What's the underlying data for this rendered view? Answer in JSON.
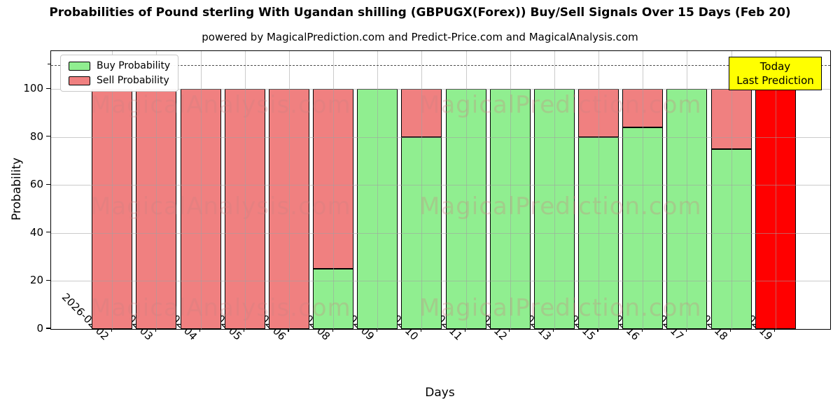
{
  "chart_data": {
    "type": "bar",
    "stacked": true,
    "title": "Probabilities of Pound sterling With Ugandan shilling (GBPUGX(Forex)) Buy/Sell Signals Over 15 Days (Feb 20)",
    "subtitle": "powered by MagicalPrediction.com and Predict-Price.com and MagicalAnalysis.com",
    "xlabel": "Days",
    "ylabel": "Probability",
    "categories": [
      "2026-02-02",
      "2026-02-03",
      "2026-02-04",
      "2026-02-05",
      "2026-02-06",
      "2026-02-08",
      "2026-02-09",
      "2026-02-10",
      "2026-02-11",
      "2026-02-12",
      "2026-02-13",
      "2026-02-15",
      "2026-02-16",
      "2026-02-17",
      "2026-02-18",
      "2026-02-19"
    ],
    "series": [
      {
        "name": "Buy Probability",
        "color": "#90ee90",
        "in_legend": true,
        "values": [
          0,
          0,
          0,
          0,
          0,
          25,
          100,
          80,
          100,
          100,
          100,
          80,
          84,
          100,
          75,
          0
        ]
      },
      {
        "name": "Sell Probability",
        "color": "#f08080",
        "in_legend": true,
        "values": [
          100,
          100,
          100,
          100,
          100,
          75,
          0,
          20,
          0,
          0,
          0,
          20,
          16,
          0,
          25,
          0
        ]
      },
      {
        "name": "Last Prediction (Today)",
        "color": "#ff0000",
        "in_legend": false,
        "values": [
          0,
          0,
          0,
          0,
          0,
          0,
          0,
          0,
          0,
          0,
          0,
          0,
          0,
          0,
          0,
          100
        ]
      }
    ],
    "yticks": [
      0,
      20,
      40,
      60,
      80,
      100
    ],
    "ylim": [
      0,
      115.8
    ],
    "dashed_line_y": 110,
    "grid": true,
    "xtick_rotation": 45,
    "legend_position": "upper left"
  },
  "legend": {
    "items": [
      {
        "label": "Buy Probability",
        "color": "#90ee90"
      },
      {
        "label": "Sell Probability",
        "color": "#f08080"
      }
    ]
  },
  "annotation": {
    "line1": "Today",
    "line2": "Last Prediction",
    "bg_color": "#ffff00"
  },
  "watermark": {
    "left_text": "MagicalAnalysis.com",
    "right_text": "MagicalPrediction.com",
    "color": "rgba(205,130,130,0.30)"
  },
  "colors": {
    "buy": "#90ee90",
    "sell": "#f08080",
    "today_bar": "#ff0000",
    "annotation_bg": "#ffff00",
    "grid": "#a0a0a0",
    "dashed_line": "#4d4d4d"
  }
}
